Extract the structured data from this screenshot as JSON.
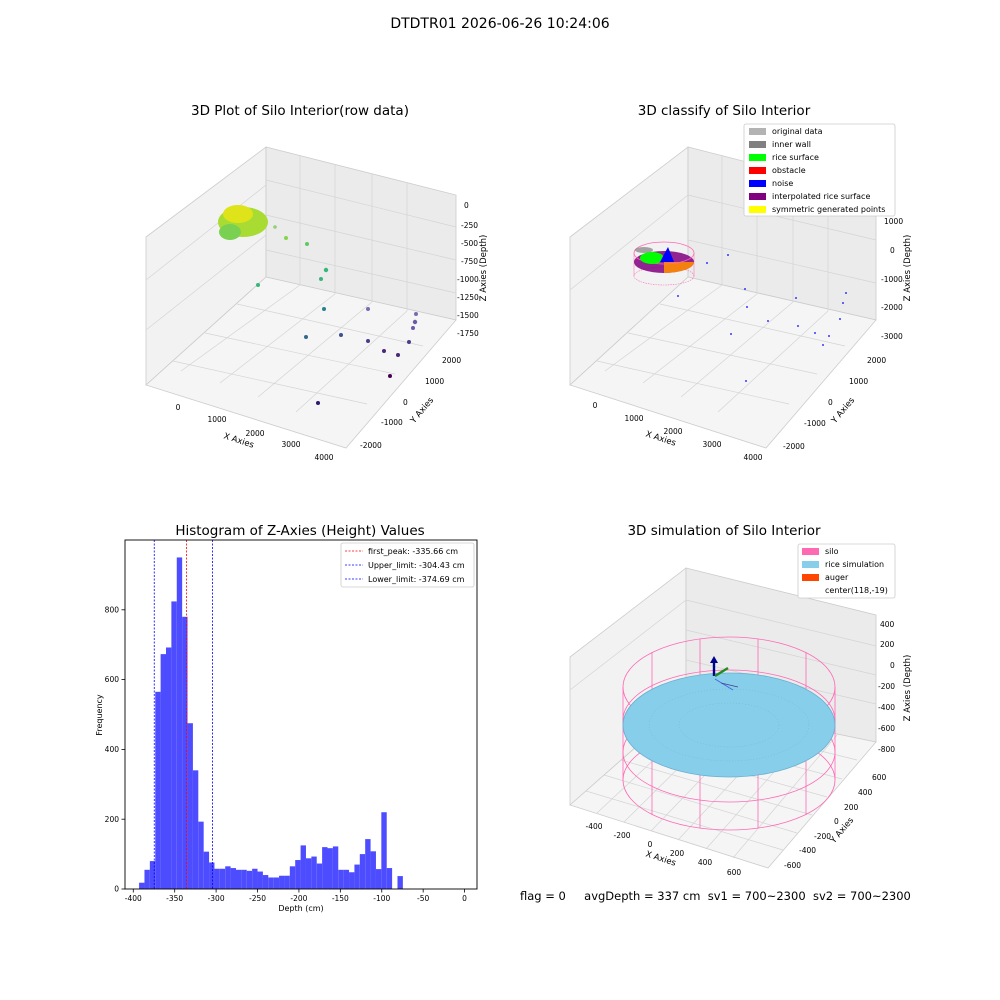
{
  "figure_title": "DTDTR01 2026-06-26 10:24:06",
  "panels": {
    "raw": {
      "title": "3D Plot of Silo Interior(row data)",
      "xlabel": "X Axies",
      "ylabel": "Y Axies",
      "zlabel": "Z Axies (Depth)",
      "x_ticks": [
        "0",
        "1000",
        "2000",
        "3000",
        "4000"
      ],
      "y_ticks": [
        "2000",
        "1000",
        "0",
        "-1000",
        "-2000"
      ],
      "z_ticks": [
        "0",
        "-250",
        "-500",
        "-750",
        "-1000",
        "-1250",
        "-1500",
        "-1750"
      ]
    },
    "classify": {
      "title": "3D classify of Silo Interior",
      "xlabel": "X Axies",
      "ylabel": "Y Axies",
      "zlabel": "Z Axies (Depth)",
      "x_ticks": [
        "0",
        "1000",
        "2000",
        "3000",
        "4000"
      ],
      "y_ticks": [
        "2000",
        "1000",
        "0",
        "-1000",
        "-2000"
      ],
      "z_ticks": [
        "1000",
        "0",
        "-1000",
        "-2000",
        "-3000"
      ],
      "legend": [
        {
          "label": "original data",
          "color": "#b3b3b3"
        },
        {
          "label": "inner wall",
          "color": "#808080"
        },
        {
          "label": "rice surface",
          "color": "#00ff00"
        },
        {
          "label": "obstacle",
          "color": "#ff0000"
        },
        {
          "label": "noise",
          "color": "#0000ff"
        },
        {
          "label": "interpolated rice surface",
          "color": "#800080"
        },
        {
          "label": "symmetric generated points",
          "color": "#ffff00"
        }
      ]
    },
    "simulation": {
      "title": "3D simulation of Silo Interior",
      "xlabel": "X Axies",
      "ylabel": "Y Axies",
      "zlabel": "Z Axies (Depth)",
      "x_ticks": [
        "-400",
        "-200",
        "0",
        "200",
        "400",
        "600"
      ],
      "y_ticks": [
        "600",
        "400",
        "200",
        "0",
        "-200",
        "-400",
        "-600"
      ],
      "z_ticks": [
        "400",
        "200",
        "0",
        "-200",
        "-400",
        "-600",
        "-800"
      ],
      "legend": [
        {
          "label": "silo",
          "color": "#ff69b4"
        },
        {
          "label": "rice simulation",
          "color": "#87ceeb"
        },
        {
          "label": "auger",
          "color": "#ff4500"
        },
        {
          "label": "center(118,-19)",
          "color": ""
        }
      ]
    }
  },
  "chart_data": {
    "type": "bar",
    "title": "Histogram of Z-Axies (Height) Values",
    "xlabel": "Depth (cm)",
    "ylabel": "Frequency",
    "xlim": [
      -410,
      15
    ],
    "ylim": [
      0,
      1000
    ],
    "x_ticks": [
      -400,
      -350,
      -300,
      -250,
      -200,
      -150,
      -100,
      -50,
      0
    ],
    "y_ticks": [
      0,
      200,
      400,
      600,
      800
    ],
    "bar_color": "#4d4dff",
    "bin_start": -393,
    "bin_width": 6.5,
    "values": [
      18,
      55,
      80,
      565,
      673,
      692,
      824,
      950,
      780,
      475,
      340,
      193,
      107,
      76,
      58,
      58,
      65,
      60,
      55,
      55,
      52,
      58,
      50,
      40,
      33,
      33,
      38,
      38,
      65,
      83,
      125,
      88,
      93,
      73,
      120,
      117,
      122,
      55,
      55,
      48,
      70,
      100,
      143,
      108,
      57,
      220,
      60,
      0,
      37
    ],
    "vlines": [
      {
        "label": "first_peak: -335.66 cm",
        "x": -335.66,
        "color": "#ff0000"
      },
      {
        "label": "Upper_limit: -304.43 cm",
        "x": -304.43,
        "color": "#0000ff"
      },
      {
        "label": "Lower_limit: -374.69 cm",
        "x": -374.69,
        "color": "#0000ff"
      }
    ]
  },
  "status": {
    "flag": "flag = 0",
    "avg_depth": "avgDepth = 337 cm",
    "sv1": "sv1 = 700~2300",
    "sv2": "sv2 = 700~2300"
  }
}
